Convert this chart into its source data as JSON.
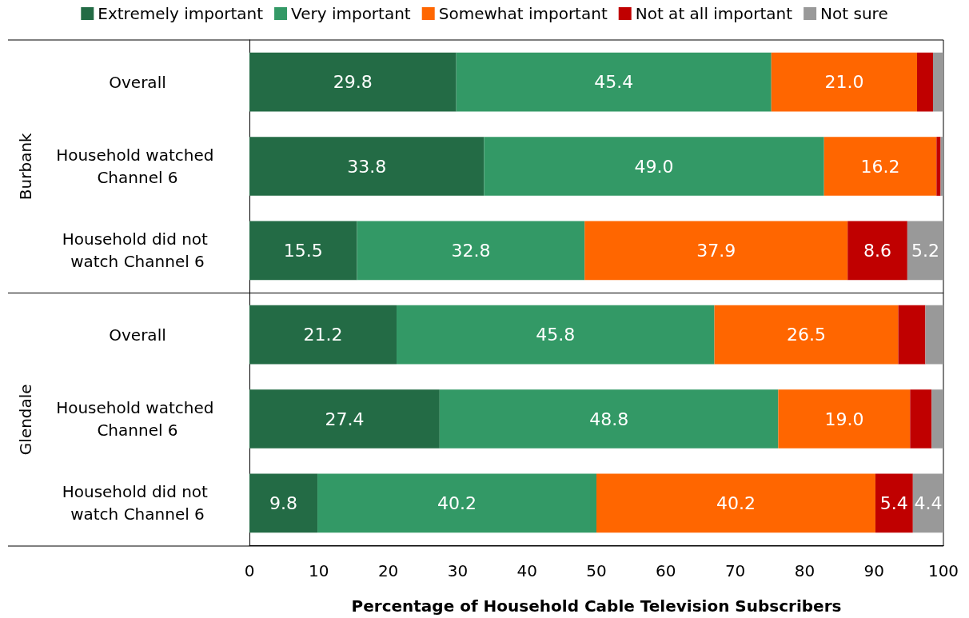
{
  "chart_data": {
    "type": "bar",
    "orientation": "horizontal",
    "stacked": true,
    "xlabel": "Percentage of Household Cable Television Subscribers",
    "categories": [
      "Overall",
      "Household watched Channel 6",
      "Household did not watch Channel 6",
      "Overall",
      "Household watched Channel 6",
      "Household did not watch Channel 6"
    ],
    "annotations": [
      "Burbank",
      "Glendale"
    ],
    "series": [
      {
        "name": "Extremely important",
        "color": "#236b45",
        "values": [
          29.8,
          33.8,
          15.5,
          21.2,
          27.4,
          9.8
        ],
        "value_labels": [
          "29.8",
          "33.8",
          "15.5",
          "21.2",
          "27.4",
          "9.8"
        ]
      },
      {
        "name": "Very important",
        "color": "#339966",
        "values": [
          45.4,
          49.0,
          32.8,
          45.8,
          48.8,
          40.2
        ],
        "value_labels": [
          "45.4",
          "49.0",
          "32.8",
          "45.8",
          "48.8",
          "40.2"
        ]
      },
      {
        "name": "Somewhat important",
        "color": "#ff6600",
        "values": [
          21.0,
          16.2,
          37.9,
          26.5,
          19.0,
          40.2
        ],
        "value_labels": [
          "21.0",
          "16.2",
          "37.9",
          "26.5",
          "19.0",
          "40.2"
        ]
      },
      {
        "name": "Not at all important",
        "color": "#c00000",
        "values": [
          2.3,
          0.6,
          8.6,
          3.9,
          3.1,
          5.4
        ],
        "value_labels": [
          null,
          null,
          "8.6",
          null,
          null,
          "5.4"
        ]
      },
      {
        "name": "Not sure",
        "color": "#999999",
        "values": [
          1.5,
          0.4,
          5.2,
          2.6,
          1.7,
          4.4
        ],
        "value_labels": [
          null,
          null,
          "5.2",
          null,
          null,
          "4.4"
        ]
      }
    ],
    "xlim": [
      0,
      100
    ],
    "xticks": [
      0,
      10,
      20,
      30,
      40,
      50,
      60,
      70,
      80,
      90,
      100
    ],
    "grid": false,
    "legend": "top"
  }
}
